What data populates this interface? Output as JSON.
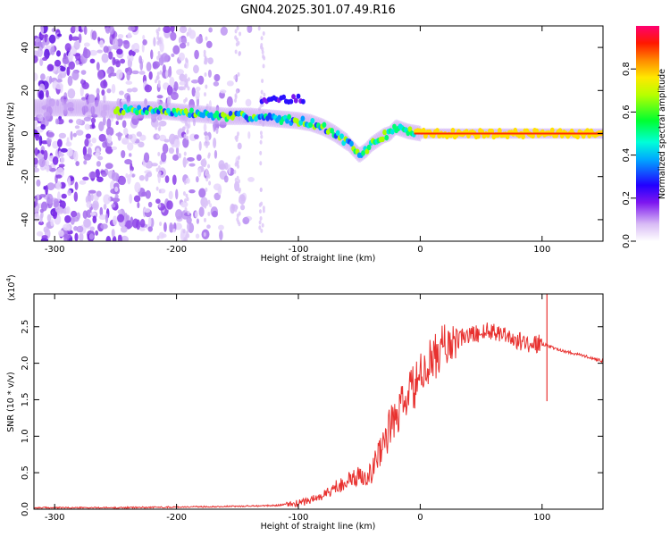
{
  "title": "GN04.2025.301.07.49.R16",
  "chart_data": [
    {
      "type": "heatmap",
      "name": "spectrogram",
      "xlabel": "Height of straight line (km)",
      "ylabel": "Frequency (Hz)",
      "xlim": [
        -317,
        150
      ],
      "ylim": [
        -50,
        50
      ],
      "xticks": [
        -300,
        -200,
        -100,
        0,
        100
      ],
      "yticks": [
        -40,
        -20,
        0,
        20,
        40
      ],
      "colorbar": {
        "label": "Normalized spectral amplitude",
        "range": [
          0,
          1
        ],
        "ticks": [
          0.0,
          0.2,
          0.4,
          0.6,
          0.8
        ],
        "tick_labels": [
          "0.0",
          "0.2",
          "0.4",
          "0.6",
          "0.8"
        ]
      },
      "ridge": {
        "heights": [
          -317,
          -280,
          -250,
          -220,
          -200,
          -180,
          -160,
          -140,
          -120,
          -100,
          -90,
          -80,
          -70,
          -60,
          -55,
          -50,
          -45,
          -40,
          -35,
          -30,
          -25,
          -20,
          -15,
          -10,
          0,
          20,
          50,
          100,
          150
        ],
        "frequencies": [
          12,
          12,
          11,
          11,
          10,
          9,
          8,
          8,
          7,
          6,
          5,
          3,
          0,
          -4,
          -7,
          -10,
          -8,
          -5,
          -3,
          -1,
          0,
          3,
          2,
          1,
          0,
          0,
          0,
          0,
          0
        ]
      }
    },
    {
      "type": "line",
      "name": "snr",
      "xlabel": "Height of straight line (km)",
      "ylabel": "SNR (10 * v/v)",
      "y_multiplier": "(x10",
      "y_multiplier_exp": "4",
      "xlim": [
        -317,
        150
      ],
      "ylim": [
        0,
        2.95
      ],
      "xticks": [
        -300,
        -200,
        -100,
        0,
        100
      ],
      "yticks": [
        0.0,
        0.5,
        1.0,
        1.5,
        2.0,
        2.5
      ],
      "ytick_labels": [
        "0.0",
        "0.5",
        "1.0",
        "1.5",
        "2.0",
        "2.5"
      ],
      "color": "#e8312f",
      "series": [
        {
          "name": "SNR",
          "x": [
            -317,
            -250,
            -200,
            -150,
            -120,
            -100,
            -80,
            -65,
            -50,
            -40,
            -30,
            -20,
            -10,
            0,
            10,
            20,
            30,
            40,
            50,
            60,
            70,
            80,
            90,
            100,
            104,
            110,
            130,
            150
          ],
          "y": [
            0.02,
            0.02,
            0.03,
            0.04,
            0.05,
            0.08,
            0.18,
            0.35,
            0.45,
            0.5,
            0.95,
            1.25,
            1.55,
            1.8,
            2.05,
            2.25,
            2.32,
            2.38,
            2.42,
            2.45,
            2.4,
            2.3,
            2.27,
            2.26,
            2.25,
            2.2,
            2.12,
            2.03
          ]
        }
      ],
      "annotations": [
        {
          "x": 104,
          "y_min": 1.48,
          "y_max": 2.95,
          "kind": "spike"
        }
      ]
    }
  ]
}
